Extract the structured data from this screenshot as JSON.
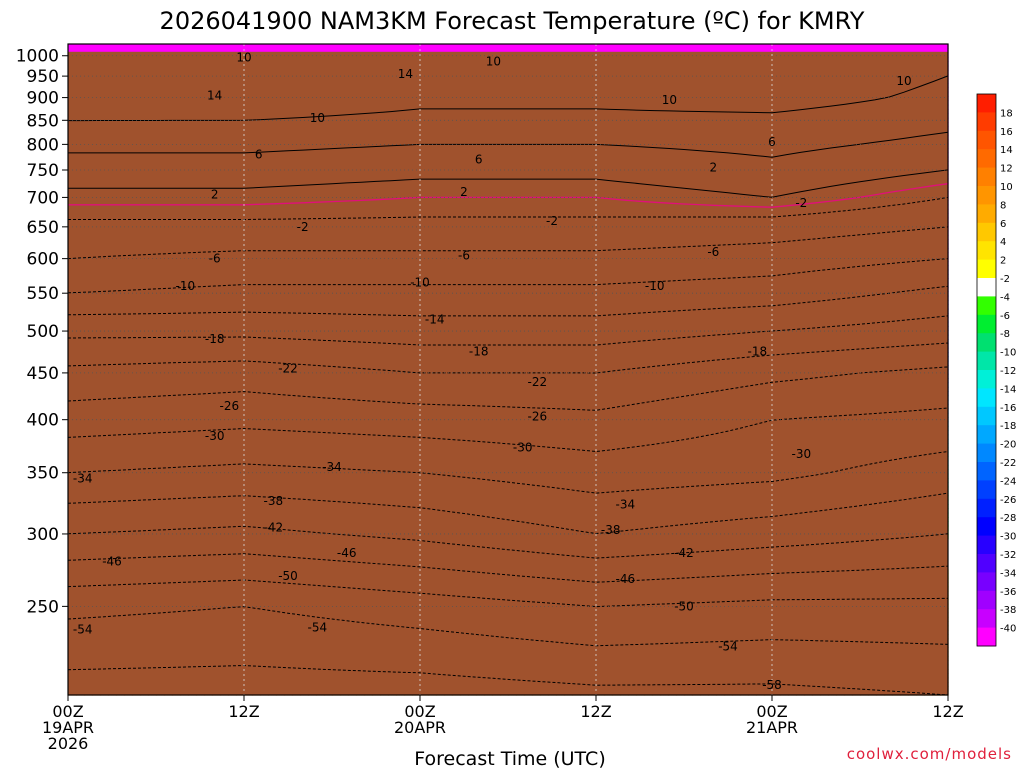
{
  "chart_data": {
    "type": "heatmap",
    "title": "2026041900 NAM3KM Forecast Temperature (ºC) for KMRY",
    "xlabel": "Forecast Time (UTC)",
    "ylabel": "",
    "watermark": "coolwx.com/models",
    "x_range_hours": [
      0,
      60
    ],
    "x_ticks": [
      {
        "hour": 0,
        "lines": [
          "00Z",
          "19APR",
          "2026"
        ]
      },
      {
        "hour": 12,
        "lines": [
          "12Z"
        ]
      },
      {
        "hour": 24,
        "lines": [
          "00Z",
          "20APR"
        ]
      },
      {
        "hour": 36,
        "lines": [
          "12Z"
        ]
      },
      {
        "hour": 48,
        "lines": [
          "00Z",
          "21APR"
        ]
      },
      {
        "hour": 60,
        "lines": [
          "12Z"
        ]
      }
    ],
    "y_axis": {
      "units": "hPa",
      "range": [
        1030,
        200
      ],
      "scale": "log",
      "ticks": [
        250,
        300,
        350,
        400,
        450,
        500,
        550,
        600,
        650,
        700,
        750,
        800,
        850,
        900,
        950,
        1000
      ]
    },
    "surface_pressure_hpa": 1010,
    "colorbar": {
      "labels": [
        "18",
        "16",
        "14",
        "12",
        "10",
        "8",
        "6",
        "4",
        "2",
        "-2",
        "-4",
        "-6",
        "-8",
        "-10",
        "-12",
        "-14",
        "-16",
        "-18",
        "-20",
        "-22",
        "-24",
        "-26",
        "-28",
        "-30",
        "-32",
        "-34",
        "-36",
        "-38",
        "-40"
      ],
      "colors": [
        "#ff1e00",
        "#ff3c00",
        "#ff5500",
        "#ff6a00",
        "#ff8000",
        "#ff9500",
        "#ffab00",
        "#ffc800",
        "#ffe400",
        "#ffff00",
        "#ffffff",
        "#32ff00",
        "#00ee30",
        "#00e070",
        "#00e6a8",
        "#00f0d8",
        "#00e6ff",
        "#00c8ff",
        "#00a8ff",
        "#0088ff",
        "#0064ff",
        "#0040ff",
        "#0020ff",
        "#0000ff",
        "#2800ff",
        "#5000ff",
        "#7800ff",
        "#a000ff",
        "#c800ff",
        "#ff00ff"
      ]
    },
    "profile_hours": [
      0,
      12,
      24,
      36,
      48,
      60
    ],
    "temperature_profiles": [
      {
        "hour": 0,
        "p": [
          1030,
          950,
          900,
          850,
          800,
          750,
          700,
          650,
          600,
          550,
          500,
          450,
          400,
          350,
          300,
          250,
          200
        ],
        "t": [
          13,
          14,
          14,
          10,
          7,
          4,
          1,
          -3,
          -6,
          -10,
          -17,
          -23,
          -28,
          -34,
          -42,
          -53,
          -60
        ]
      },
      {
        "hour": 12,
        "p": [
          1030,
          950,
          900,
          850,
          800,
          750,
          700,
          650,
          600,
          550,
          500,
          450,
          400,
          350,
          300,
          250,
          200
        ],
        "t": [
          12,
          13,
          13,
          10,
          7,
          4,
          1,
          -3,
          -7,
          -11,
          -17,
          -24,
          -29,
          -35,
          -43,
          -54,
          -60
        ]
      },
      {
        "hour": 24,
        "p": [
          1030,
          950,
          900,
          850,
          800,
          750,
          700,
          650,
          600,
          550,
          500,
          450,
          400,
          350,
          300,
          250,
          200
        ],
        "t": [
          12,
          11,
          11,
          9,
          6,
          3,
          0,
          -3,
          -7,
          -11,
          -16,
          -22,
          -28,
          -34,
          -41,
          -52,
          -60
        ]
      },
      {
        "hour": 36,
        "p": [
          1030,
          950,
          900,
          850,
          800,
          750,
          700,
          650,
          600,
          550,
          500,
          450,
          400,
          350,
          300,
          250,
          200
        ],
        "t": [
          11,
          11,
          11,
          9,
          6,
          3,
          0,
          -3,
          -7,
          -11,
          -16,
          -22,
          -27,
          -32,
          -38,
          -50,
          -59
        ]
      },
      {
        "hour": 48,
        "p": [
          1030,
          950,
          900,
          850,
          800,
          750,
          700,
          650,
          600,
          550,
          500,
          450,
          400,
          350,
          300,
          250,
          200
        ],
        "t": [
          14,
          13,
          12,
          9,
          7,
          5,
          2,
          -4,
          -8,
          -12,
          -18,
          -25,
          -30,
          -33,
          -40,
          -51,
          -59
        ]
      },
      {
        "hour": 60,
        "p": [
          1030,
          950,
          900,
          850,
          800,
          750,
          700,
          650,
          600,
          550,
          500,
          450,
          400,
          350,
          300,
          250,
          200
        ],
        "t": [
          11,
          10,
          9,
          7,
          5,
          2,
          -2,
          -6,
          -10,
          -15,
          -20,
          -27,
          -31,
          -36,
          -42,
          -51,
          -58
        ]
      }
    ],
    "contour_labels": [
      {
        "value": "-58",
        "hour": 48,
        "p": 205
      },
      {
        "value": "-54",
        "hour": 1,
        "p": 236
      },
      {
        "value": "-54",
        "hour": 17,
        "p": 237
      },
      {
        "value": "-54",
        "hour": 45,
        "p": 226
      },
      {
        "value": "-50",
        "hour": 15,
        "p": 270
      },
      {
        "value": "-50",
        "hour": 42,
        "p": 250
      },
      {
        "value": "-46",
        "hour": 3,
        "p": 280
      },
      {
        "value": "-46",
        "hour": 19,
        "p": 286
      },
      {
        "value": "-46",
        "hour": 38,
        "p": 268
      },
      {
        "value": "-42",
        "hour": 14,
        "p": 305
      },
      {
        "value": "-42",
        "hour": 42,
        "p": 286
      },
      {
        "value": "-38",
        "hour": 14,
        "p": 326
      },
      {
        "value": "-38",
        "hour": 37,
        "p": 303
      },
      {
        "value": "-34",
        "hour": 1,
        "p": 345
      },
      {
        "value": "-34",
        "hour": 18,
        "p": 355
      },
      {
        "value": "-34",
        "hour": 38,
        "p": 323
      },
      {
        "value": "-30",
        "hour": 10,
        "p": 384
      },
      {
        "value": "-30",
        "hour": 31,
        "p": 373
      },
      {
        "value": "-30",
        "hour": 50,
        "p": 367
      },
      {
        "value": "-26",
        "hour": 11,
        "p": 414
      },
      {
        "value": "-26",
        "hour": 32,
        "p": 403
      },
      {
        "value": "-22",
        "hour": 15,
        "p": 455
      },
      {
        "value": "-22",
        "hour": 32,
        "p": 440
      },
      {
        "value": "-18",
        "hour": 10,
        "p": 490
      },
      {
        "value": "-18",
        "hour": 28,
        "p": 475
      },
      {
        "value": "-18",
        "hour": 47,
        "p": 475
      },
      {
        "value": "-14",
        "hour": 25,
        "p": 515
      },
      {
        "value": "-10",
        "hour": 8,
        "p": 560
      },
      {
        "value": "-10",
        "hour": 24,
        "p": 565
      },
      {
        "value": "-10",
        "hour": 40,
        "p": 560
      },
      {
        "value": "-6",
        "hour": 10,
        "p": 600
      },
      {
        "value": "-6",
        "hour": 27,
        "p": 605
      },
      {
        "value": "-6",
        "hour": 44,
        "p": 610
      },
      {
        "value": "-2",
        "hour": 16,
        "p": 650
      },
      {
        "value": "-2",
        "hour": 33,
        "p": 660
      },
      {
        "value": "-2",
        "hour": 50,
        "p": 690
      },
      {
        "value": "2",
        "hour": 10,
        "p": 705
      },
      {
        "value": "2",
        "hour": 27,
        "p": 710
      },
      {
        "value": "2",
        "hour": 44,
        "p": 755
      },
      {
        "value": "6",
        "hour": 13,
        "p": 780
      },
      {
        "value": "6",
        "hour": 28,
        "p": 770
      },
      {
        "value": "6",
        "hour": 48,
        "p": 805
      },
      {
        "value": "10",
        "hour": 17,
        "p": 855
      },
      {
        "value": "10",
        "hour": 41,
        "p": 895
      },
      {
        "value": "10",
        "hour": 57,
        "p": 938
      },
      {
        "value": "10",
        "hour": 12,
        "p": 995
      },
      {
        "value": "10",
        "hour": 29,
        "p": 985
      },
      {
        "value": "14",
        "hour": 10,
        "p": 905
      },
      {
        "value": "14",
        "hour": 23,
        "p": 955
      }
    ]
  }
}
